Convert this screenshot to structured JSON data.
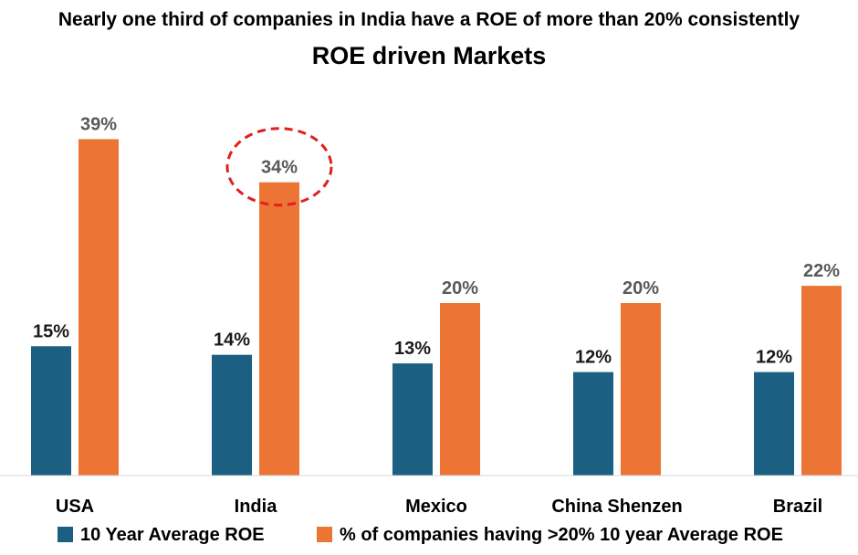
{
  "chart_data": {
    "type": "bar",
    "subtitle": "Nearly one third of companies in India have a ROE of more than 20% consistently",
    "title": "ROE driven Markets",
    "categories": [
      "USA",
      "India",
      "Mexico",
      "China Shenzen",
      "Brazil"
    ],
    "series": [
      {
        "name": "10 Year Average ROE",
        "values": [
          15,
          14,
          13,
          12,
          12
        ],
        "labels": [
          "15%",
          "14%",
          "13%",
          "12%",
          "12%"
        ],
        "color": "#1b5f82"
      },
      {
        "name": "% of companies having >20% 10 year Average ROE",
        "values": [
          39,
          34,
          20,
          20,
          22
        ],
        "labels": [
          "39%",
          "34%",
          "20%",
          "20%",
          "22%"
        ],
        "color": "#ec7434"
      }
    ],
    "ylim": [
      0,
      45
    ],
    "xlabel": "",
    "ylabel": "",
    "grid": false,
    "legend_position": "bottom",
    "highlight": {
      "category": "India",
      "series": 1,
      "style": "dashed-circle",
      "color": "#e02020"
    }
  }
}
